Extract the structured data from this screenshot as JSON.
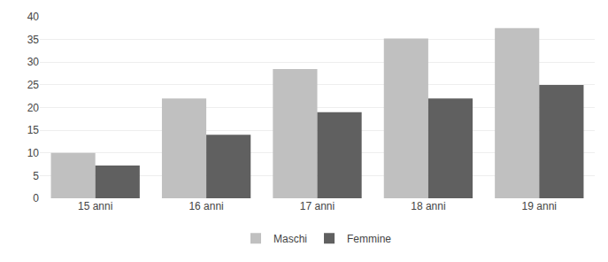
{
  "chart_data": {
    "type": "bar",
    "categories": [
      "15 anni",
      "16 anni",
      "17 anni",
      "18 anni",
      "19 anni"
    ],
    "series": [
      {
        "name": "Maschi",
        "color": "#c0c0c0",
        "values": [
          10.0,
          22.0,
          28.5,
          35.2,
          37.5
        ]
      },
      {
        "name": "Femmine",
        "color": "#606060",
        "values": [
          7.2,
          14.0,
          19.0,
          22.0,
          25.0
        ]
      }
    ],
    "ylim": [
      0,
      40
    ],
    "yticks": [
      0,
      5,
      10,
      15,
      20,
      25,
      30,
      35,
      40
    ],
    "grid": true,
    "legend": "bottom"
  }
}
